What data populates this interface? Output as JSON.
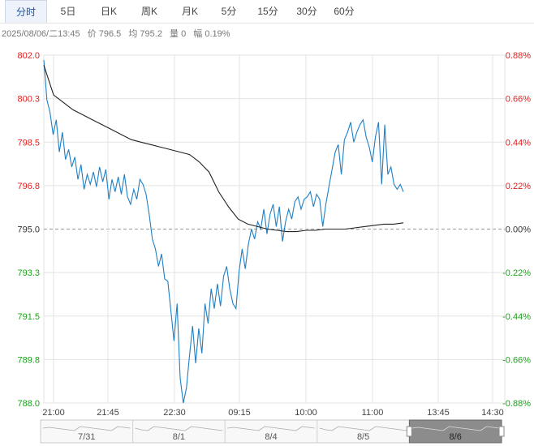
{
  "tabs": [
    "分时",
    "5日",
    "日K",
    "周K",
    "月K",
    "5分",
    "15分",
    "30分",
    "60分"
  ],
  "active_tab": 0,
  "info": {
    "datetime": "2025/08/06/二13:45",
    "price_label": "价",
    "price": "796.5",
    "avg_label": "均",
    "avg": "795.2",
    "volume_label": "量",
    "volume": "0",
    "change_label": "幅",
    "change": "0.19%"
  },
  "colors": {
    "up": "#e02020",
    "down": "#1aa31a",
    "price_line": "#1f7fc4",
    "avg_line": "#222222",
    "grid": "#e3e3e3",
    "baseline": "#999999"
  },
  "chart_data": {
    "type": "line",
    "x_ticks": [
      "21:00",
      "21:45",
      "22:30",
      "09:15",
      "10:00",
      "11:00",
      "13:45",
      "14:30"
    ],
    "y_ticks_left": [
      "802.0",
      "800.3",
      "798.5",
      "796.8",
      "795.0",
      "793.3",
      "791.5",
      "789.8",
      "788.0"
    ],
    "y_ticks_right": [
      "0.88%",
      "0.66%",
      "0.44%",
      "0.22%",
      "0.00%",
      "-0.22%",
      "-0.44%",
      "-0.66%",
      "-0.88%"
    ],
    "ylim": [
      788.0,
      802.0
    ],
    "prev_close": 795.0,
    "series": [
      {
        "values": [
          801.8,
          800.2,
          799.7,
          798.8,
          799.4,
          798.1,
          798.9,
          797.8,
          798.2,
          797.5,
          797.9,
          797.0,
          797.6,
          796.6,
          797.2,
          796.8,
          797.3,
          796.7,
          797.5,
          796.9,
          797.4,
          796.2,
          797.0,
          796.5,
          797.1,
          796.4,
          797.2,
          796.3,
          796.0,
          796.6,
          796.2,
          797.0,
          796.8,
          796.4,
          795.6,
          794.6,
          794.2,
          793.5,
          794.0,
          793.0,
          792.9,
          791.7,
          790.5,
          792.0,
          789.0,
          788.0,
          788.6,
          789.9,
          791.1,
          789.6,
          791.0,
          790.0,
          792.0,
          791.2,
          792.6,
          791.8,
          792.8,
          791.9,
          793.1,
          793.5,
          792.6,
          792.0,
          791.8,
          793.3,
          794.2,
          793.4,
          794.4,
          795.0,
          794.6,
          795.3,
          795.0,
          795.8,
          794.8,
          795.6,
          796.0,
          795.1,
          795.9,
          794.5,
          795.3,
          795.8,
          795.4,
          796.1,
          796.3,
          795.8,
          796.2,
          796.3,
          796.5,
          795.9,
          796.4,
          796.2,
          795.1,
          796.0,
          796.7,
          797.4,
          798.1,
          798.4,
          797.2,
          798.6,
          798.9,
          799.3,
          798.5,
          798.9,
          799.2,
          799.4,
          798.7,
          798.3,
          797.7,
          798.7,
          799.3,
          796.8,
          799.2,
          797.2,
          797.5,
          796.8,
          796.6,
          796.8,
          796.5
        ],
        "color": "#1f7fc4"
      },
      {
        "values": [
          801.6,
          800.4,
          800.1,
          799.8,
          799.6,
          799.4,
          799.2,
          799.0,
          798.8,
          798.6,
          798.5,
          798.4,
          798.3,
          798.2,
          798.1,
          798.0,
          797.7,
          797.3,
          796.5,
          795.9,
          795.4,
          795.2,
          795.1,
          795.0,
          794.95,
          794.9,
          794.9,
          794.95,
          794.95,
          795.0,
          795.0,
          795.0,
          795.05,
          795.1,
          795.15,
          795.2,
          795.2,
          795.25
        ],
        "color": "#222222"
      }
    ],
    "timeline_labels": [
      "7/31",
      "8/1",
      "8/4",
      "8/5",
      "8/6"
    ]
  }
}
